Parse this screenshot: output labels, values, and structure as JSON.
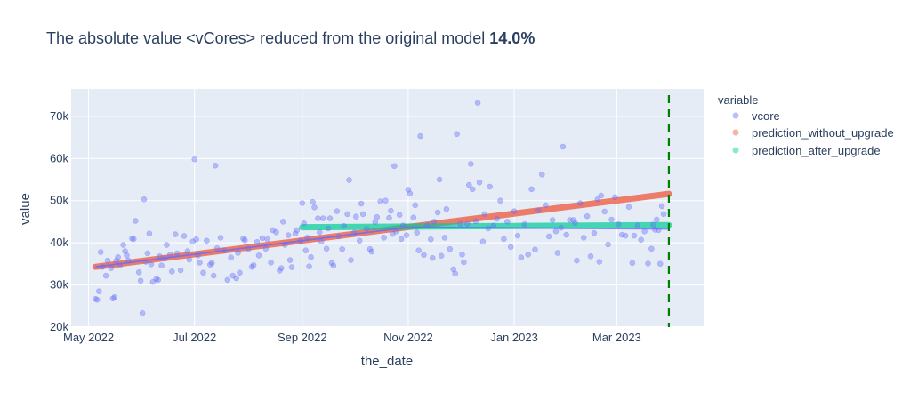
{
  "title": {
    "prefix": "The absolute value <vCores> reduced from the original model ",
    "emphasis": "14.0%"
  },
  "colors": {
    "plot_bg": "#e5ecf6",
    "grid": "#ffffff",
    "vcore": "#636efa",
    "prediction_without_upgrade": "#ef553b",
    "prediction_after_upgrade": "#00cc96",
    "vline": "#008000"
  },
  "legend": {
    "title": "variable",
    "items": [
      "vcore",
      "prediction_without_upgrade",
      "prediction_after_upgrade"
    ]
  },
  "chart_data": {
    "type": "scatter",
    "title": "The absolute value <vCores> reduced from the original model 14.0%",
    "xlabel": "the_date",
    "ylabel": "value",
    "x_type": "date",
    "xlim": [
      "2022-04-21",
      "2023-04-20"
    ],
    "ylim": [
      20000,
      76500
    ],
    "x_ticks": [
      {
        "date": "2022-05-01",
        "label": "May 2022"
      },
      {
        "date": "2022-07-01",
        "label": "Jul 2022"
      },
      {
        "date": "2022-09-01",
        "label": "Sep 2022"
      },
      {
        "date": "2022-11-01",
        "label": "Nov 2022"
      },
      {
        "date": "2023-01-01",
        "label": "Jan 2023"
      },
      {
        "date": "2023-03-01",
        "label": "Mar 2023"
      }
    ],
    "y_ticks": [
      {
        "value": 20000,
        "label": "20k"
      },
      {
        "value": 30000,
        "label": "30k"
      },
      {
        "value": 40000,
        "label": "40k"
      },
      {
        "value": 50000,
        "label": "50k"
      },
      {
        "value": 60000,
        "label": "60k"
      },
      {
        "value": 70000,
        "label": "70k"
      }
    ],
    "grid": true,
    "legend_position": "right",
    "series": [
      {
        "name": "vcore",
        "mode": "markers",
        "points": [
          [
            "2022-05-05",
            26700
          ],
          [
            "2022-05-06",
            26500
          ],
          [
            "2022-05-07",
            28500
          ],
          [
            "2022-05-08",
            37800
          ],
          [
            "2022-05-09",
            34300
          ],
          [
            "2022-05-11",
            32200
          ],
          [
            "2022-05-12",
            35800
          ],
          [
            "2022-05-14",
            34000
          ],
          [
            "2022-05-15",
            26800
          ],
          [
            "2022-05-16",
            27100
          ],
          [
            "2022-05-17",
            35800
          ],
          [
            "2022-05-18",
            36600
          ],
          [
            "2022-05-19",
            34600
          ],
          [
            "2022-05-21",
            39500
          ],
          [
            "2022-05-22",
            38000
          ],
          [
            "2022-05-23",
            37000
          ],
          [
            "2022-05-24",
            35800
          ],
          [
            "2022-05-26",
            41000
          ],
          [
            "2022-05-27",
            40900
          ],
          [
            "2022-05-28",
            45200
          ],
          [
            "2022-05-30",
            33000
          ],
          [
            "2022-05-31",
            31000
          ],
          [
            "2022-06-01",
            23300
          ],
          [
            "2022-06-02",
            50300
          ],
          [
            "2022-06-03",
            35500
          ],
          [
            "2022-06-04",
            37500
          ],
          [
            "2022-06-05",
            42200
          ],
          [
            "2022-06-06",
            34900
          ],
          [
            "2022-06-07",
            30700
          ],
          [
            "2022-06-09",
            31400
          ],
          [
            "2022-06-10",
            31200
          ],
          [
            "2022-06-11",
            36800
          ],
          [
            "2022-06-12",
            34600
          ],
          [
            "2022-06-14",
            36300
          ],
          [
            "2022-06-15",
            39500
          ],
          [
            "2022-06-17",
            37200
          ],
          [
            "2022-06-18",
            33200
          ],
          [
            "2022-06-20",
            42000
          ],
          [
            "2022-06-21",
            37500
          ],
          [
            "2022-06-23",
            33500
          ],
          [
            "2022-06-25",
            41600
          ],
          [
            "2022-06-27",
            38000
          ],
          [
            "2022-06-28",
            36000
          ],
          [
            "2022-06-30",
            40300
          ],
          [
            "2022-07-01",
            59800
          ],
          [
            "2022-07-02",
            40800
          ],
          [
            "2022-07-03",
            37000
          ],
          [
            "2022-07-04",
            35300
          ],
          [
            "2022-07-06",
            32900
          ],
          [
            "2022-07-08",
            40500
          ],
          [
            "2022-07-10",
            34800
          ],
          [
            "2022-07-11",
            35200
          ],
          [
            "2022-07-12",
            32200
          ],
          [
            "2022-07-13",
            58300
          ],
          [
            "2022-07-14",
            38700
          ],
          [
            "2022-07-16",
            41200
          ],
          [
            "2022-07-18",
            38200
          ],
          [
            "2022-07-20",
            31200
          ],
          [
            "2022-07-22",
            36500
          ],
          [
            "2022-07-23",
            32200
          ],
          [
            "2022-07-25",
            31600
          ],
          [
            "2022-07-26",
            37600
          ],
          [
            "2022-07-27",
            32900
          ],
          [
            "2022-07-29",
            41000
          ],
          [
            "2022-07-30",
            40600
          ],
          [
            "2022-08-01",
            38500
          ],
          [
            "2022-08-03",
            34300
          ],
          [
            "2022-08-04",
            34700
          ],
          [
            "2022-08-06",
            40200
          ],
          [
            "2022-08-07",
            37000
          ],
          [
            "2022-08-09",
            41100
          ],
          [
            "2022-08-11",
            38600
          ],
          [
            "2022-08-12",
            40800
          ],
          [
            "2022-08-14",
            35300
          ],
          [
            "2022-08-15",
            43000
          ],
          [
            "2022-08-17",
            42500
          ],
          [
            "2022-08-19",
            33400
          ],
          [
            "2022-08-20",
            34000
          ],
          [
            "2022-08-21",
            45000
          ],
          [
            "2022-08-22",
            39500
          ],
          [
            "2022-08-24",
            41800
          ],
          [
            "2022-08-25",
            35900
          ],
          [
            "2022-08-26",
            34200
          ],
          [
            "2022-08-28",
            42200
          ],
          [
            "2022-08-29",
            43000
          ],
          [
            "2022-08-31",
            40500
          ],
          [
            "2022-09-01",
            49400
          ],
          [
            "2022-09-02",
            44600
          ],
          [
            "2022-09-03",
            38200
          ],
          [
            "2022-09-04",
            41200
          ],
          [
            "2022-09-05",
            34400
          ],
          [
            "2022-09-06",
            36600
          ],
          [
            "2022-09-07",
            49700
          ],
          [
            "2022-09-08",
            48400
          ],
          [
            "2022-09-10",
            45800
          ],
          [
            "2022-09-11",
            42500
          ],
          [
            "2022-09-12",
            40300
          ],
          [
            "2022-09-13",
            45800
          ],
          [
            "2022-09-15",
            38600
          ],
          [
            "2022-09-16",
            43400
          ],
          [
            "2022-09-17",
            45800
          ],
          [
            "2022-09-18",
            35200
          ],
          [
            "2022-09-19",
            34600
          ],
          [
            "2022-09-21",
            47500
          ],
          [
            "2022-09-22",
            41500
          ],
          [
            "2022-09-24",
            38500
          ],
          [
            "2022-09-25",
            44000
          ],
          [
            "2022-09-27",
            46800
          ],
          [
            "2022-09-28",
            54900
          ],
          [
            "2022-09-29",
            35900
          ],
          [
            "2022-10-01",
            42400
          ],
          [
            "2022-10-02",
            46200
          ],
          [
            "2022-10-04",
            40500
          ],
          [
            "2022-10-05",
            49300
          ],
          [
            "2022-10-06",
            46800
          ],
          [
            "2022-10-08",
            43300
          ],
          [
            "2022-10-10",
            38500
          ],
          [
            "2022-10-11",
            37900
          ],
          [
            "2022-10-13",
            44900
          ],
          [
            "2022-10-14",
            46100
          ],
          [
            "2022-10-16",
            49800
          ],
          [
            "2022-10-18",
            41200
          ],
          [
            "2022-10-19",
            50000
          ],
          [
            "2022-10-21",
            45900
          ],
          [
            "2022-10-22",
            47600
          ],
          [
            "2022-10-23",
            42100
          ],
          [
            "2022-10-24",
            58200
          ],
          [
            "2022-10-25",
            42700
          ],
          [
            "2022-10-27",
            46600
          ],
          [
            "2022-10-28",
            40900
          ],
          [
            "2022-10-29",
            44100
          ],
          [
            "2022-10-31",
            41800
          ],
          [
            "2022-11-01",
            52600
          ],
          [
            "2022-11-02",
            51700
          ],
          [
            "2022-11-04",
            46000
          ],
          [
            "2022-11-05",
            48900
          ],
          [
            "2022-11-06",
            42400
          ],
          [
            "2022-11-07",
            38200
          ],
          [
            "2022-11-08",
            65300
          ],
          [
            "2022-11-10",
            37100
          ],
          [
            "2022-11-12",
            44200
          ],
          [
            "2022-11-14",
            40800
          ],
          [
            "2022-11-15",
            36400
          ],
          [
            "2022-11-16",
            45000
          ],
          [
            "2022-11-18",
            47200
          ],
          [
            "2022-11-19",
            55000
          ],
          [
            "2022-11-20",
            36900
          ],
          [
            "2022-11-22",
            41200
          ],
          [
            "2022-11-23",
            48000
          ],
          [
            "2022-11-25",
            38500
          ],
          [
            "2022-11-27",
            33700
          ],
          [
            "2022-11-28",
            32700
          ],
          [
            "2022-11-29",
            65800
          ],
          [
            "2022-12-01",
            44500
          ],
          [
            "2022-12-02",
            37200
          ],
          [
            "2022-12-03",
            35400
          ],
          [
            "2022-12-05",
            44500
          ],
          [
            "2022-12-06",
            53700
          ],
          [
            "2022-12-07",
            58700
          ],
          [
            "2022-12-08",
            52700
          ],
          [
            "2022-12-10",
            45100
          ],
          [
            "2022-12-11",
            73200
          ],
          [
            "2022-12-12",
            54300
          ],
          [
            "2022-12-14",
            40300
          ],
          [
            "2022-12-15",
            46800
          ],
          [
            "2022-12-17",
            43400
          ],
          [
            "2022-12-18",
            53300
          ],
          [
            "2022-12-20",
            44100
          ],
          [
            "2022-12-22",
            45700
          ],
          [
            "2022-12-24",
            50000
          ],
          [
            "2022-12-26",
            40900
          ],
          [
            "2022-12-28",
            45000
          ],
          [
            "2022-12-30",
            39000
          ],
          [
            "2023-01-01",
            47500
          ],
          [
            "2023-01-03",
            41700
          ],
          [
            "2023-01-05",
            36500
          ],
          [
            "2023-01-07",
            44400
          ],
          [
            "2023-01-09",
            37200
          ],
          [
            "2023-01-11",
            52700
          ],
          [
            "2023-01-13",
            38400
          ],
          [
            "2023-01-15",
            47700
          ],
          [
            "2023-01-17",
            56200
          ],
          [
            "2023-01-19",
            48900
          ],
          [
            "2023-01-21",
            41500
          ],
          [
            "2023-01-23",
            45400
          ],
          [
            "2023-01-25",
            42700
          ],
          [
            "2023-01-26",
            37600
          ],
          [
            "2023-01-28",
            43600
          ],
          [
            "2023-01-29",
            62800
          ],
          [
            "2023-01-31",
            41900
          ],
          [
            "2023-02-02",
            45400
          ],
          [
            "2023-02-04",
            45400
          ],
          [
            "2023-02-05",
            44700
          ],
          [
            "2023-02-06",
            35800
          ],
          [
            "2023-02-08",
            49400
          ],
          [
            "2023-02-10",
            41200
          ],
          [
            "2023-02-12",
            46300
          ],
          [
            "2023-02-14",
            36800
          ],
          [
            "2023-02-16",
            42300
          ],
          [
            "2023-02-18",
            50300
          ],
          [
            "2023-02-19",
            35500
          ],
          [
            "2023-02-20",
            51200
          ],
          [
            "2023-02-22",
            47400
          ],
          [
            "2023-02-24",
            39600
          ],
          [
            "2023-02-26",
            45500
          ],
          [
            "2023-02-28",
            50800
          ],
          [
            "2023-03-02",
            44400
          ],
          [
            "2023-03-04",
            41900
          ],
          [
            "2023-03-06",
            41700
          ],
          [
            "2023-03-08",
            48500
          ],
          [
            "2023-03-10",
            35200
          ],
          [
            "2023-03-11",
            41700
          ],
          [
            "2023-03-13",
            44100
          ],
          [
            "2023-03-15",
            40700
          ],
          [
            "2023-03-17",
            42700
          ],
          [
            "2023-03-19",
            35100
          ],
          [
            "2023-03-21",
            38600
          ],
          [
            "2023-03-22",
            44300
          ],
          [
            "2023-03-23",
            43100
          ],
          [
            "2023-03-24",
            45500
          ],
          [
            "2023-03-25",
            43000
          ],
          [
            "2023-03-26",
            35000
          ],
          [
            "2023-03-27",
            48700
          ],
          [
            "2023-03-28",
            46800
          ]
        ]
      },
      {
        "name": "prediction_without_upgrade",
        "mode": "markers",
        "start": [
          "2022-05-05",
          34300
        ],
        "end": [
          "2023-03-31",
          51600
        ]
      },
      {
        "name": "prediction_after_upgrade",
        "mode": "markers",
        "start": [
          "2022-09-01",
          43700
        ],
        "end": [
          "2023-03-31",
          44200
        ]
      }
    ],
    "trendlines": [
      {
        "series": "vcore",
        "segments": [
          [
            "2022-05-05",
            34300
          ],
          [
            "2022-09-01",
            40500
          ],
          [
            "2022-11-01",
            43700
          ],
          [
            "2023-03-31",
            43300
          ]
        ]
      }
    ],
    "vertical_line": {
      "x": "2023-03-31",
      "style": "dashed"
    }
  }
}
